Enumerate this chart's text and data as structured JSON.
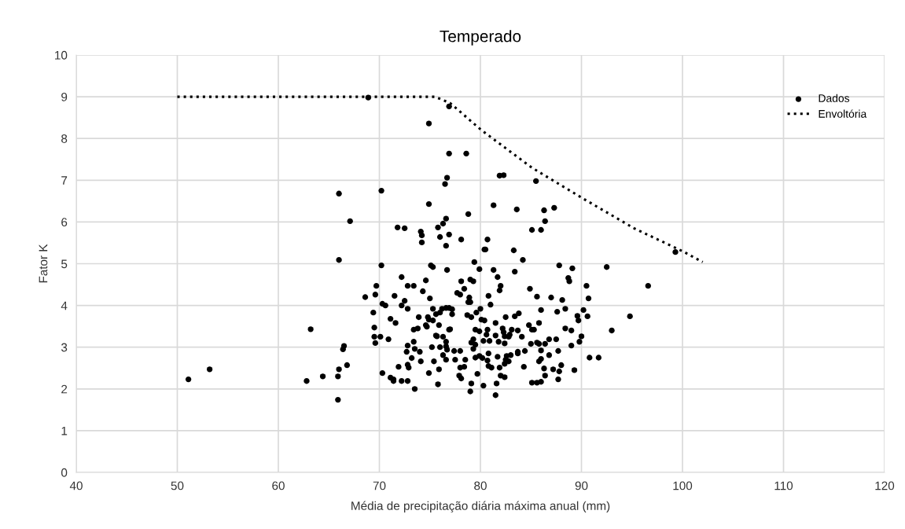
{
  "chart_data": {
    "type": "scatter",
    "title": "Temperado",
    "xlabel": "Média de precipitação diária máxima anual (mm)",
    "ylabel": "Fator K",
    "xlim": [
      40,
      120
    ],
    "xticks": [
      40,
      50,
      60,
      70,
      80,
      90,
      100,
      110,
      120
    ],
    "ylim": [
      0,
      10
    ],
    "yticks": [
      0,
      1,
      2,
      3,
      4,
      5,
      6,
      7,
      8,
      9,
      10
    ],
    "grid": true,
    "legend": "top right",
    "series": [
      {
        "name": "Dados",
        "marker": "circle",
        "color": "#000000",
        "x": [
          51.1,
          53.2,
          63.2,
          62.8,
          64.4,
          65.9,
          65.9,
          66.0,
          66.4,
          66.5,
          66.8,
          68.6,
          69.4,
          69.6,
          69.7,
          70.3,
          70.6,
          69.5,
          69.5,
          70.1,
          69.6,
          70.9,
          70.3,
          71.1,
          71.4,
          71.1,
          71.5,
          68.9,
          66.0,
          70.2,
          67.1,
          66.0,
          70.2,
          76.9,
          74.9,
          76.9,
          78.6,
          81.9,
          82.3,
          85.5,
          76.7,
          76.5,
          74.9,
          81.3,
          83.6,
          86.3,
          87.3,
          86.4,
          78.8,
          76.6,
          76.3,
          75.8,
          71.8,
          72.5,
          74.1,
          74.2,
          74.2,
          76.0,
          76.9,
          78.1,
          76.6,
          80.7,
          80.4,
          80.5,
          83.3,
          84.2,
          85.1,
          86.0,
          99.3,
          75.1,
          75.3,
          76.7,
          79.4,
          79.9,
          81.3,
          81.7,
          83.4,
          87.8,
          89.1,
          92.5,
          72.2,
          74.6,
          78.1,
          79.0,
          79.3,
          88.7,
          88.8,
          72.8,
          73.4,
          74.3,
          75.0,
          77.7,
          78.0,
          78.4,
          78.9,
          78.8,
          79.0,
          80.8,
          82.0,
          81.9,
          81.0,
          84.9,
          85.6,
          87.0,
          88.1,
          90.5,
          90.7,
          96.6,
          94.8,
          93.0,
          90.8,
          91.7,
          90.2,
          90.6,
          89.6,
          89.7,
          88.4,
          87.6,
          86.0,
          85.8,
          84.8,
          85.1,
          85.3,
          88.4,
          89.0,
          90.0,
          89.8,
          89.0,
          87.5,
          86.8,
          85.0,
          85.6,
          85.8,
          86.4,
          87.7,
          86.8,
          86.0,
          86.0,
          85.8,
          88.0,
          87.8,
          89.3,
          87.2,
          86.3,
          86.4,
          87.7,
          85.1,
          85.6,
          86.0,
          84.3,
          84.4,
          83.7,
          83.7,
          84.1,
          83.7,
          83.1,
          83.8,
          83.4,
          82.5,
          81.5,
          80.7,
          80.6,
          80.3,
          80.9,
          81.5,
          82.2,
          82.3,
          82.4,
          82.8,
          82.9,
          81.8,
          82.4,
          81.7,
          82.6,
          83.0,
          82.5,
          82.8,
          82.4,
          81.9,
          82.0,
          82.4,
          81.6,
          81.5,
          80.8,
          80.7,
          80.8,
          81.1,
          80.3,
          79.7,
          79.1,
          79.0,
          77.9,
          78.1,
          78.0,
          78.4,
          78.5,
          77.5,
          76.6,
          76.3,
          77.4,
          78.0,
          76.7,
          76.6,
          76.6,
          76.0,
          75.2,
          76.3,
          75.6,
          75.7,
          77.0,
          76.9,
          75.9,
          74.6,
          74.7,
          75.3,
          74.8,
          74.9,
          73.9,
          73.8,
          73.4,
          73.4,
          72.8,
          72.7,
          73.5,
          74.0,
          73.2,
          74.1,
          72.8,
          72.9,
          71.9,
          71.4,
          72.2,
          72.8,
          73.5,
          74.9,
          75.8,
          75.9,
          75.4,
          71.6,
          72.2,
          72.5,
          72.8,
          75.3,
          75.6,
          76.0,
          76.2,
          76.6,
          76.9,
          77.2,
          77.2,
          78.7,
          79.1,
          79.6,
          80.0,
          80.1,
          80.4,
          79.5,
          79.9,
          79.3,
          79.1,
          79.5,
          79.3,
          79.5,
          79.9,
          80.2
        ],
        "values": [
          2.23,
          2.47,
          3.43,
          2.19,
          2.3,
          2.3,
          1.74,
          2.47,
          2.95,
          3.03,
          2.57,
          4.2,
          3.83,
          4.26,
          4.47,
          4.04,
          4.0,
          3.47,
          3.25,
          3.25,
          3.1,
          3.19,
          2.38,
          2.27,
          2.23,
          3.68,
          4.23,
          8.98,
          6.68,
          6.75,
          6.02,
          5.09,
          4.96,
          8.77,
          8.36,
          7.64,
          7.64,
          7.11,
          7.12,
          6.98,
          7.06,
          6.91,
          6.43,
          6.4,
          6.3,
          6.28,
          6.34,
          6.02,
          6.19,
          6.08,
          5.96,
          5.87,
          5.87,
          5.85,
          5.77,
          5.68,
          5.51,
          5.64,
          5.7,
          5.58,
          5.43,
          5.58,
          5.34,
          5.34,
          5.32,
          5.09,
          5.81,
          5.81,
          5.28,
          4.96,
          4.92,
          4.85,
          5.04,
          4.87,
          4.85,
          4.68,
          4.81,
          4.96,
          4.89,
          4.92,
          4.68,
          4.6,
          4.58,
          4.62,
          4.58,
          4.66,
          4.58,
          4.47,
          4.47,
          4.34,
          4.17,
          4.3,
          4.26,
          4.4,
          4.19,
          4.08,
          4.08,
          4.23,
          4.47,
          4.36,
          4.02,
          4.4,
          4.21,
          4.19,
          4.13,
          4.47,
          4.17,
          4.47,
          3.74,
          3.4,
          2.75,
          2.75,
          3.89,
          3.74,
          3.75,
          3.64,
          3.92,
          3.85,
          3.89,
          3.58,
          3.53,
          3.42,
          3.42,
          3.45,
          3.4,
          3.26,
          3.13,
          3.04,
          3.19,
          3.19,
          3.08,
          3.11,
          3.08,
          3.08,
          2.91,
          2.81,
          2.92,
          2.72,
          2.66,
          2.57,
          2.42,
          2.45,
          2.47,
          2.49,
          2.32,
          2.23,
          2.15,
          2.15,
          2.17,
          2.53,
          2.91,
          2.89,
          2.85,
          3.25,
          3.4,
          3.42,
          3.81,
          3.74,
          3.72,
          3.58,
          3.42,
          3.3,
          3.15,
          3.15,
          3.28,
          3.45,
          3.36,
          3.26,
          3.25,
          3.3,
          3.13,
          3.09,
          2.77,
          2.79,
          2.81,
          2.7,
          2.66,
          2.6,
          2.51,
          2.32,
          2.28,
          2.13,
          1.85,
          2.85,
          2.68,
          2.55,
          2.51,
          2.08,
          2.36,
          2.13,
          1.94,
          2.32,
          2.25,
          2.51,
          2.53,
          2.7,
          2.7,
          2.7,
          2.81,
          2.91,
          2.91,
          2.94,
          3.02,
          3.13,
          3.0,
          3.0,
          3.25,
          3.28,
          3.26,
          3.43,
          3.42,
          3.53,
          3.53,
          3.49,
          3.64,
          3.72,
          3.66,
          3.72,
          3.45,
          3.42,
          3.13,
          3.04,
          2.89,
          2.96,
          2.89,
          2.74,
          2.66,
          2.58,
          2.51,
          2.53,
          2.19,
          2.19,
          2.19,
          2.0,
          2.38,
          2.11,
          2.47,
          2.66,
          3.58,
          4.0,
          4.11,
          3.92,
          3.92,
          3.79,
          3.83,
          3.92,
          3.94,
          3.94,
          3.91,
          3.79,
          3.77,
          3.72,
          3.83,
          3.92,
          3.66,
          3.64,
          3.42,
          3.38,
          3.19,
          3.11,
          3.06,
          2.96,
          2.75,
          2.79,
          2.74
        ]
      },
      {
        "name": "Envoltória",
        "type": "line",
        "line_style": "dotted",
        "marker": "none",
        "color": "#000000",
        "x": [
          50,
          75.5,
          77,
          80.1,
          85.1,
          90.1,
          95.2,
          100,
          102
        ],
        "values": [
          9,
          9,
          8.85,
          8.2,
          7.3,
          6.57,
          5.85,
          5.3,
          5.04
        ]
      }
    ]
  }
}
